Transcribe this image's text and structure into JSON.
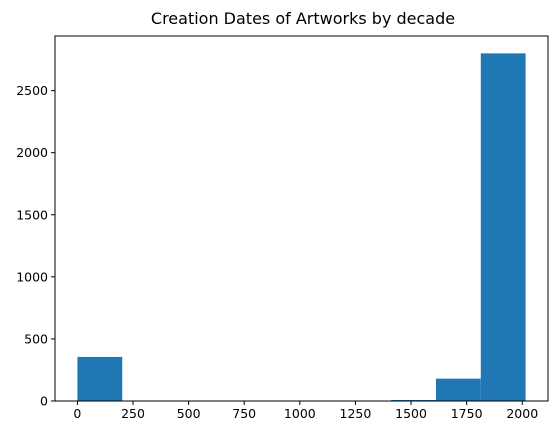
{
  "chart_data": {
    "type": "bar",
    "title": "Creation Dates of Artworks by decade",
    "xlabel": "",
    "ylabel": "",
    "bins": [
      {
        "start": 0,
        "end": 201.5,
        "count": 355
      },
      {
        "start": 201.5,
        "end": 403,
        "count": 0
      },
      {
        "start": 403,
        "end": 604.5,
        "count": 0
      },
      {
        "start": 604.5,
        "end": 806,
        "count": 0
      },
      {
        "start": 806,
        "end": 1007.5,
        "count": 0
      },
      {
        "start": 1007.5,
        "end": 1209,
        "count": 0
      },
      {
        "start": 1209,
        "end": 1410.5,
        "count": 0
      },
      {
        "start": 1410.5,
        "end": 1612,
        "count": 8
      },
      {
        "start": 1612,
        "end": 1813.5,
        "count": 180
      },
      {
        "start": 1813.5,
        "end": 2015,
        "count": 2800
      }
    ],
    "xlim": [
      -100.75,
      2115.75
    ],
    "ylim": [
      0,
      2940
    ],
    "x_ticks": [
      0,
      250,
      500,
      750,
      1000,
      1250,
      1500,
      1750,
      2000
    ],
    "y_ticks": [
      0,
      500,
      1000,
      1500,
      2000,
      2500
    ],
    "bar_color": "#1f77b4",
    "grid": false,
    "legend": "none"
  }
}
